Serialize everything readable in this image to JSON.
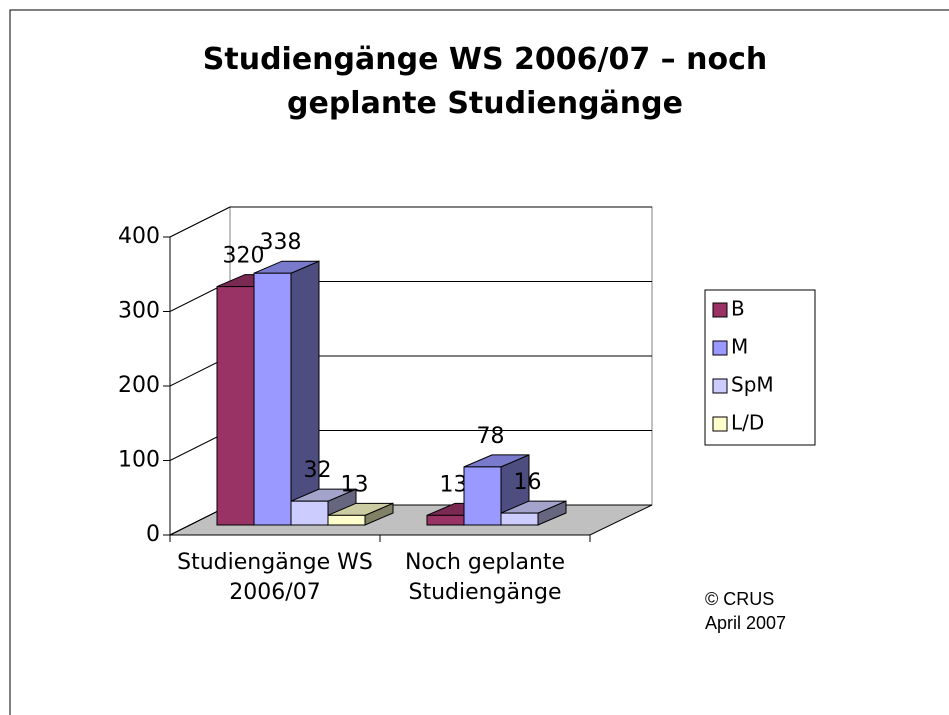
{
  "chart_data": {
    "type": "bar3d",
    "title": "Studiengänge WS 2006/07 – noch geplante Studiengänge",
    "categories": [
      "Studiengänge WS 2006/07",
      "Noch geplante Studiengänge"
    ],
    "series": [
      {
        "name": "B",
        "color": "#993366",
        "values": [
          320,
          13
        ]
      },
      {
        "name": "M",
        "color": "#9999ff",
        "values": [
          338,
          78
        ]
      },
      {
        "name": "SpM",
        "color": "#ccccff",
        "values": [
          32,
          16
        ]
      },
      {
        "name": "L/D",
        "color": "#ffffcc",
        "values": [
          13,
          null
        ]
      }
    ],
    "ylim": [
      0,
      400
    ],
    "yticks": [
      0,
      100,
      200,
      300,
      400
    ],
    "grid": true,
    "legend": "right",
    "note": "© CRUS April 2007"
  }
}
